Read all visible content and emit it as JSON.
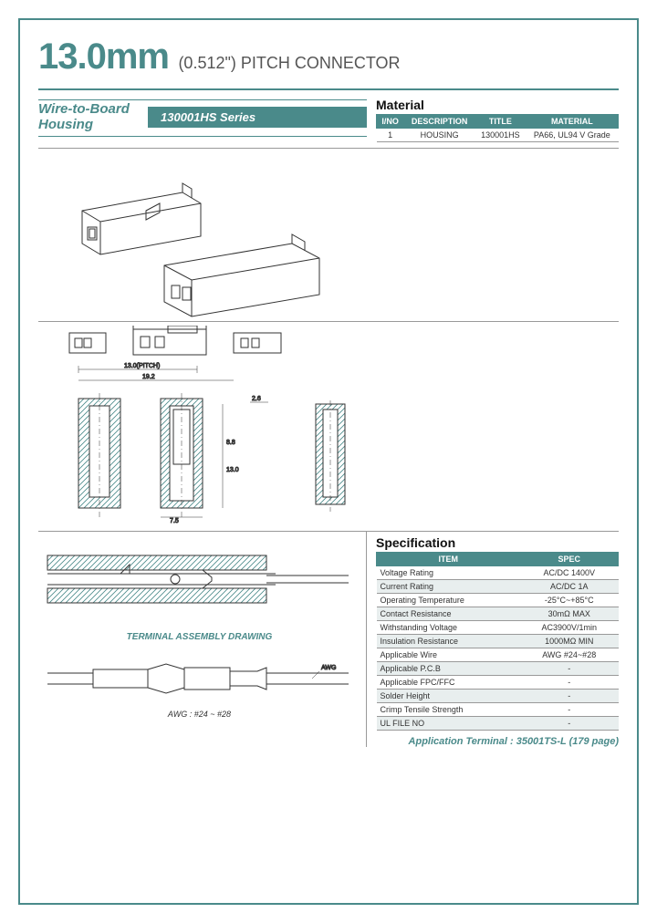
{
  "title": {
    "main": "13.0mm",
    "sub": "(0.512\") PITCH CONNECTOR"
  },
  "product": {
    "category_line1": "Wire-to-Board",
    "category_line2": "Housing",
    "series": "130001HS Series"
  },
  "material": {
    "heading": "Material",
    "columns": [
      "I/NO",
      "DESCRIPTION",
      "TITLE",
      "MATERIAL"
    ],
    "rows": [
      [
        "1",
        "HOUSING",
        "130001HS",
        "PA66, UL94 V Grade"
      ]
    ]
  },
  "drawing": {
    "iso_label": "",
    "pitch_label": "13.0(PITCH)",
    "dim_192": "19.2",
    "dim_26": "2.6",
    "dim_88": "8.8",
    "dim_130": "13.0",
    "dim_75": "7.5",
    "assembly_label": "TERMINAL ASSEMBLY DRAWING",
    "wire_label": "AWG : #24 ~ #28",
    "awg_text": "AWG"
  },
  "specification": {
    "heading": "Specification",
    "columns": [
      "ITEM",
      "SPEC"
    ],
    "rows": [
      [
        "Voltage Rating",
        "AC/DC 1400V"
      ],
      [
        "Current Rating",
        "AC/DC 1A"
      ],
      [
        "Operating Temperature",
        "-25°C~+85°C"
      ],
      [
        "Contact Resistance",
        "30mΩ MAX"
      ],
      [
        "Withstanding Voltage",
        "AC3900V/1min"
      ],
      [
        "Insulation Resistance",
        "1000MΩ MIN"
      ],
      [
        "Applicable Wire",
        "AWG #24~#28"
      ],
      [
        "Applicable P.C.B",
        "-"
      ],
      [
        "Applicable FPC/FFC",
        "-"
      ],
      [
        "Solder Height",
        "-"
      ],
      [
        "Crimp Tensile Strength",
        "-"
      ],
      [
        "UL FILE NO",
        "-"
      ]
    ]
  },
  "footer": {
    "application_note": "Application Terminal : 35001TS-L (179 page)"
  },
  "colors": {
    "accent": "#4a8a8a",
    "text": "#333333",
    "hatch": "#4a8a8a"
  }
}
